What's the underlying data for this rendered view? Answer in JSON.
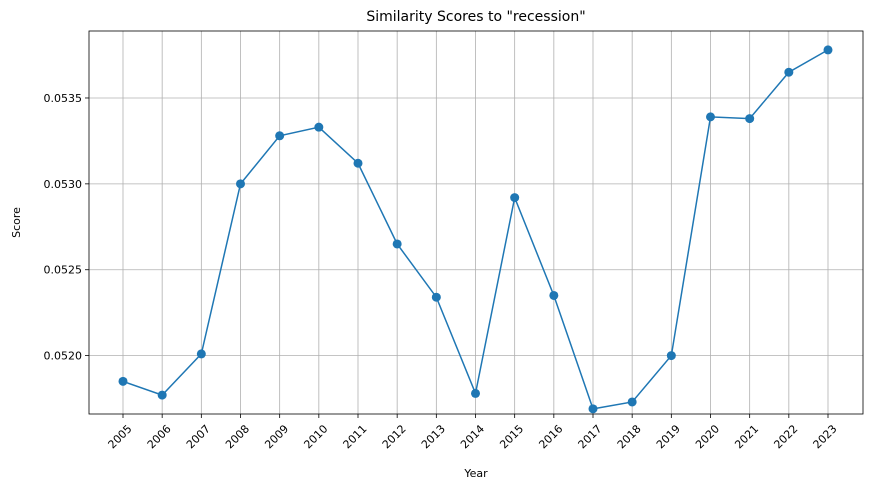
{
  "chart_data": {
    "type": "line",
    "title": "Similarity Scores to \"recession\"",
    "xlabel": "Year",
    "ylabel": "Score",
    "grid": true,
    "marker": "circle",
    "color": "#1f77b4",
    "ylim": [
      0.05166,
      0.05389
    ],
    "yticks": [
      "0.0520",
      "0.0525",
      "0.0530",
      "0.0535"
    ],
    "x": [
      "2005",
      "2006",
      "2007",
      "2008",
      "2009",
      "2010",
      "2011",
      "2012",
      "2013",
      "2014",
      "2015",
      "2016",
      "2017",
      "2018",
      "2019",
      "2020",
      "2021",
      "2022",
      "2023"
    ],
    "series": [
      {
        "values": [
          0.05185,
          0.05177,
          0.05201,
          0.053,
          0.05328,
          0.05333,
          0.05312,
          0.05265,
          0.05234,
          0.05178,
          0.05292,
          0.05235,
          0.05169,
          0.05173,
          0.052,
          0.05339,
          0.05338,
          0.05365,
          0.05378
        ]
      }
    ]
  }
}
